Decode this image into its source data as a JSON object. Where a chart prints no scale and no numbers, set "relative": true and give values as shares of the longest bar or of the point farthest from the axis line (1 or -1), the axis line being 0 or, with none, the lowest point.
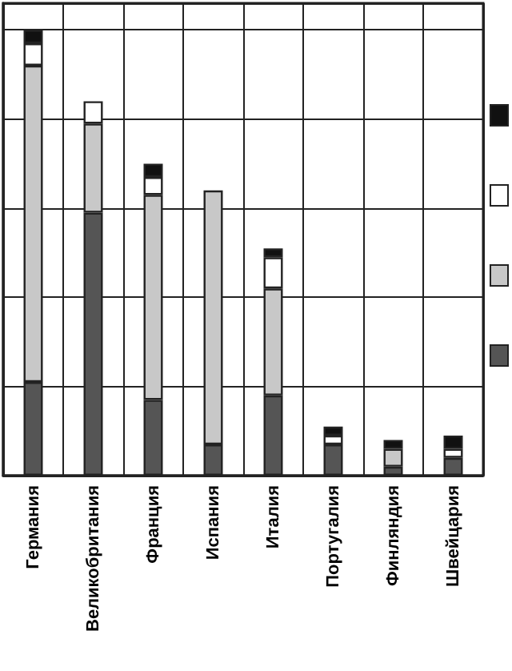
{
  "chart_data": {
    "type": "bar",
    "stacked": true,
    "relative": true,
    "grid": true,
    "categories": [
      "Германия",
      "Великобритания",
      "Франция",
      "Испания",
      "Италия",
      "Португалия",
      "Финляндия",
      "Швейцария"
    ],
    "series": [
      {
        "color": "#555555",
        "values": [
          0.21,
          0.59,
          0.17,
          0.07,
          0.18,
          0.07,
          0.02,
          0.04
        ]
      },
      {
        "color": "#c8c8c8",
        "values": [
          0.71,
          0.2,
          0.46,
          0.57,
          0.24,
          null,
          0.04,
          null
        ]
      },
      {
        "color": "#ffffff",
        "values": [
          0.05,
          0.05,
          0.04,
          null,
          0.07,
          0.02,
          null,
          0.02
        ]
      },
      {
        "color": "#111111",
        "values": [
          0.03,
          null,
          0.03,
          null,
          0.02,
          0.02,
          0.02,
          0.03
        ]
      }
    ]
  }
}
